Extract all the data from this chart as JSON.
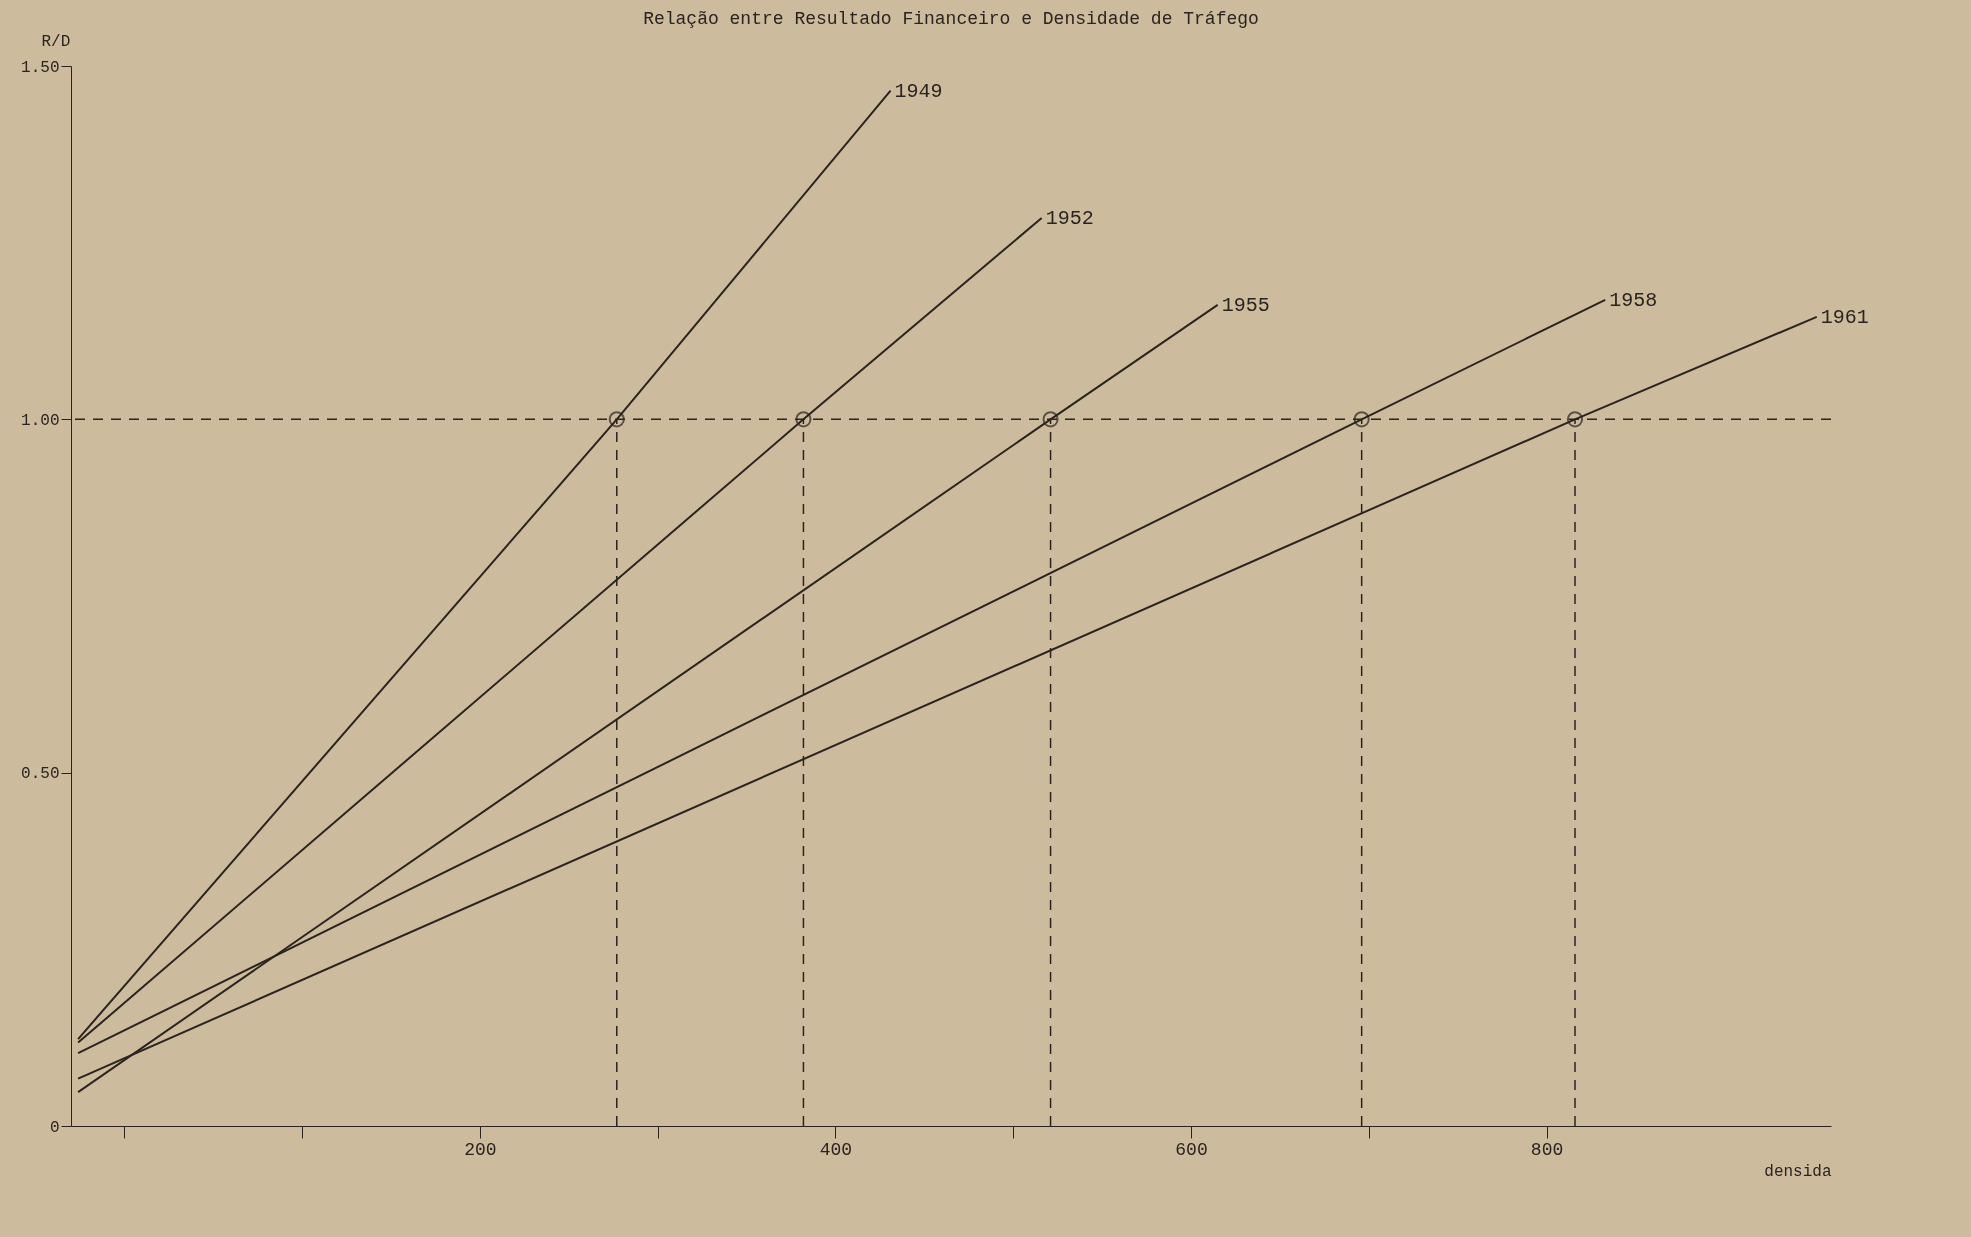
{
  "chart_data": {
    "type": "line",
    "title": "Relação entre Resultado Financeiro e Densidade de Tráfego",
    "xlabel": "densida",
    "ylabel": "R/D",
    "xlim": [
      -30,
      960
    ],
    "xticks": [
      {
        "value": 0,
        "label": null
      },
      {
        "value": 100,
        "label": null
      },
      200,
      {
        "value": 300,
        "label": null
      },
      400,
      {
        "value": 500,
        "label": null
      },
      600,
      {
        "value": 700,
        "label": null
      },
      800
    ],
    "ylim": [
      0,
      1.5
    ],
    "yticks": [
      {
        "value": 0,
        "label": "0"
      },
      {
        "value": 0.5,
        "label": "0.50"
      },
      {
        "value": 1,
        "label": "1.00"
      },
      {
        "value": 1.5,
        "label": "1.50"
      }
    ],
    "grid": false,
    "legend": false,
    "line_style": "solid",
    "series": [
      {
        "name": "1949",
        "color": "#2a2420",
        "x": [
          -26,
          277,
          431
        ],
        "values": [
          0.123,
          1.0,
          1.465
        ]
      },
      {
        "name": "1952",
        "color": "#2a2420",
        "x": [
          -26,
          382,
          516
        ],
        "values": [
          0.118,
          1.0,
          1.285
        ]
      },
      {
        "name": "1955",
        "color": "#2a2420",
        "x": [
          -26,
          521,
          615
        ],
        "values": [
          0.048,
          1.0,
          1.162
        ]
      },
      {
        "name": "1958",
        "color": "#2a2420",
        "x": [
          -26,
          696,
          833
        ],
        "values": [
          0.103,
          1.0,
          1.169
        ]
      },
      {
        "name": "1961",
        "color": "#2a2420",
        "x": [
          -26,
          816,
          952
        ],
        "values": [
          0.067,
          1.0,
          1.145
        ]
      },
      {
        "type": "scatter",
        "marker": "circle",
        "color": "#2a2420",
        "x": [
          277,
          382,
          521,
          696,
          816
        ],
        "values": [
          1,
          1,
          1,
          1,
          1
        ]
      }
    ],
    "ref_lines": [
      {
        "axis": "y",
        "value": 1.0,
        "line_style": "dashed",
        "color": "#2a2420"
      },
      {
        "axis": "x",
        "value": 277,
        "line_style": "dashed",
        "color": "#2a2420"
      },
      {
        "axis": "x",
        "value": 382,
        "line_style": "dashed",
        "color": "#2a2420"
      },
      {
        "axis": "x",
        "value": 521,
        "line_style": "dashed",
        "color": "#2a2420"
      },
      {
        "axis": "x",
        "value": 696,
        "line_style": "dashed",
        "color": "#2a2420"
      },
      {
        "axis": "x",
        "value": 816,
        "line_style": "dashed",
        "color": "#2a2420"
      }
    ]
  }
}
